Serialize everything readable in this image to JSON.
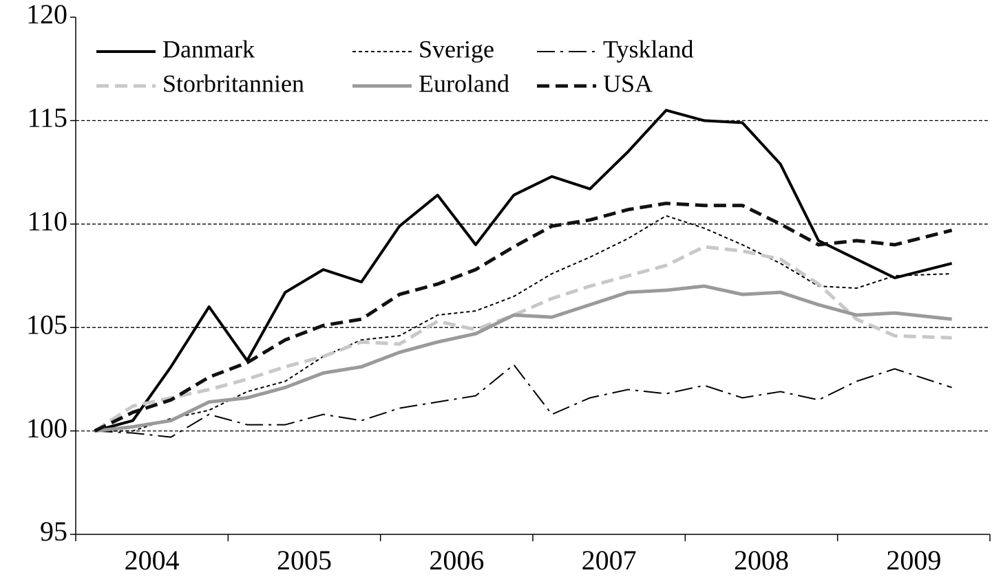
{
  "chart_data": {
    "type": "line",
    "x": [
      2004.125,
      2004.375,
      2004.625,
      2004.875,
      2005.125,
      2005.375,
      2005.625,
      2005.875,
      2006.125,
      2006.375,
      2006.625,
      2006.875,
      2007.125,
      2007.375,
      2007.625,
      2007.875,
      2008.125,
      2008.375,
      2008.625,
      2008.875,
      2009.125,
      2009.375,
      2009.75
    ],
    "series": [
      {
        "name": "Danmark",
        "color": "#000000",
        "dash": "solid",
        "width": 4,
        "values": [
          100,
          100.5,
          103.1,
          106.0,
          103.4,
          106.7,
          107.8,
          107.2,
          109.9,
          111.4,
          109.0,
          111.4,
          112.3,
          111.7,
          113.5,
          115.5,
          115.0,
          114.9,
          112.9,
          109.2,
          108.3,
          107.4,
          108.1
        ]
      },
      {
        "name": "Sverige",
        "color": "#000000",
        "dash": "dotted",
        "width": 2,
        "values": [
          100,
          100.0,
          100.6,
          101.0,
          101.9,
          102.4,
          103.6,
          104.4,
          104.6,
          105.6,
          105.8,
          106.5,
          107.6,
          108.4,
          109.3,
          110.4,
          109.8,
          109.0,
          108.1,
          107.0,
          106.9,
          107.5,
          107.6
        ]
      },
      {
        "name": "Tyskland",
        "color": "#000000",
        "dash": "dashdot",
        "width": 2,
        "values": [
          100,
          99.9,
          99.7,
          100.8,
          100.3,
          100.3,
          100.8,
          100.5,
          101.1,
          101.4,
          101.7,
          103.2,
          100.8,
          101.6,
          102.0,
          101.8,
          102.2,
          101.6,
          101.9,
          101.5,
          102.4,
          103.0,
          102.1
        ]
      },
      {
        "name": "Storbritannien",
        "color": "#c8c8c8",
        "dash": "dashed",
        "width": 5,
        "values": [
          100,
          101.2,
          101.6,
          102.0,
          102.5,
          103.1,
          103.6,
          104.3,
          104.2,
          105.3,
          104.9,
          105.6,
          106.4,
          107.0,
          107.5,
          108.0,
          108.9,
          108.7,
          108.3,
          107.1,
          105.4,
          104.6,
          104.5
        ]
      },
      {
        "name": "Euroland",
        "color": "#9a9a9a",
        "dash": "solid",
        "width": 5,
        "values": [
          100,
          100.2,
          100.5,
          101.4,
          101.6,
          102.1,
          102.8,
          103.1,
          103.8,
          104.3,
          104.7,
          105.6,
          105.5,
          106.1,
          106.7,
          106.8,
          107.0,
          106.6,
          106.7,
          106.1,
          105.6,
          105.7,
          105.4
        ]
      },
      {
        "name": "USA",
        "color": "#111111",
        "dash": "dashed",
        "width": 5,
        "values": [
          100,
          100.9,
          101.5,
          102.6,
          103.3,
          104.4,
          105.1,
          105.4,
          106.6,
          107.1,
          107.8,
          108.9,
          109.9,
          110.2,
          110.7,
          111.0,
          110.9,
          110.9,
          110.0,
          109.0,
          109.2,
          109.0,
          109.7
        ]
      }
    ],
    "xlim": [
      2004,
      2010
    ],
    "xtick_marks": [
      2004,
      2005,
      2006,
      2007,
      2008,
      2009,
      2010
    ],
    "year_labels": [
      2004,
      2005,
      2006,
      2007,
      2008,
      2009
    ],
    "ylim": [
      95,
      120
    ],
    "yticks": [
      95,
      100,
      105,
      110,
      115,
      120
    ],
    "grid": true,
    "legend": "top-left"
  }
}
